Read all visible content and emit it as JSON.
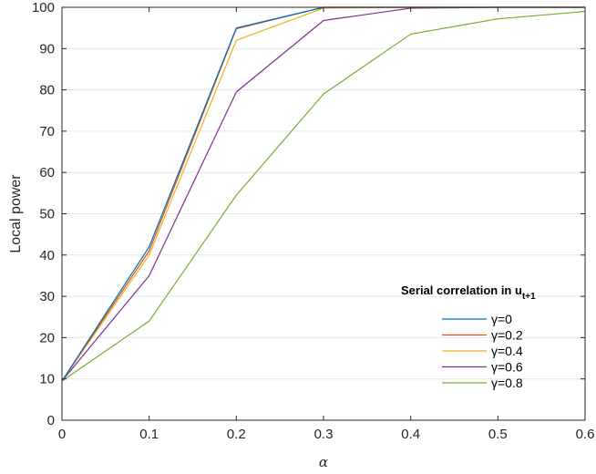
{
  "chart_data": {
    "type": "line",
    "xlabel": "α",
    "ylabel": "Local power",
    "xlim": [
      0,
      0.6
    ],
    "ylim": [
      0,
      100
    ],
    "xticks": [
      "0",
      "0.1",
      "0.2",
      "0.3",
      "0.4",
      "0.5",
      "0.6"
    ],
    "yticks": [
      "0",
      "10",
      "20",
      "30",
      "40",
      "50",
      "60",
      "70",
      "80",
      "90",
      "100"
    ],
    "grid": "horizontal",
    "legend_position": "lower-right",
    "legend_title": "Serial correlation in u",
    "legend_title_subscript": "t+1",
    "x": [
      0,
      0.1,
      0.2,
      0.3,
      0.4,
      0.5,
      0.6
    ],
    "series": [
      {
        "name": "γ=0",
        "color": "#0072bd",
        "values": [
          9.5,
          42,
          95,
          100,
          100,
          100,
          100
        ]
      },
      {
        "name": "γ=0.2",
        "color": "#d95319",
        "values": [
          9.5,
          41,
          94.8,
          100,
          100,
          100,
          100
        ]
      },
      {
        "name": "γ=0.4",
        "color": "#edb120",
        "values": [
          9.5,
          40,
          92,
          99.8,
          100,
          100,
          100
        ]
      },
      {
        "name": "γ=0.6",
        "color": "#7e2f8e",
        "values": [
          9.5,
          35,
          79.5,
          96.8,
          99.8,
          100,
          100
        ]
      },
      {
        "name": "γ=0.8",
        "color": "#77ac30",
        "values": [
          9.5,
          24,
          54.5,
          79,
          93.5,
          97.2,
          99
        ]
      }
    ]
  }
}
